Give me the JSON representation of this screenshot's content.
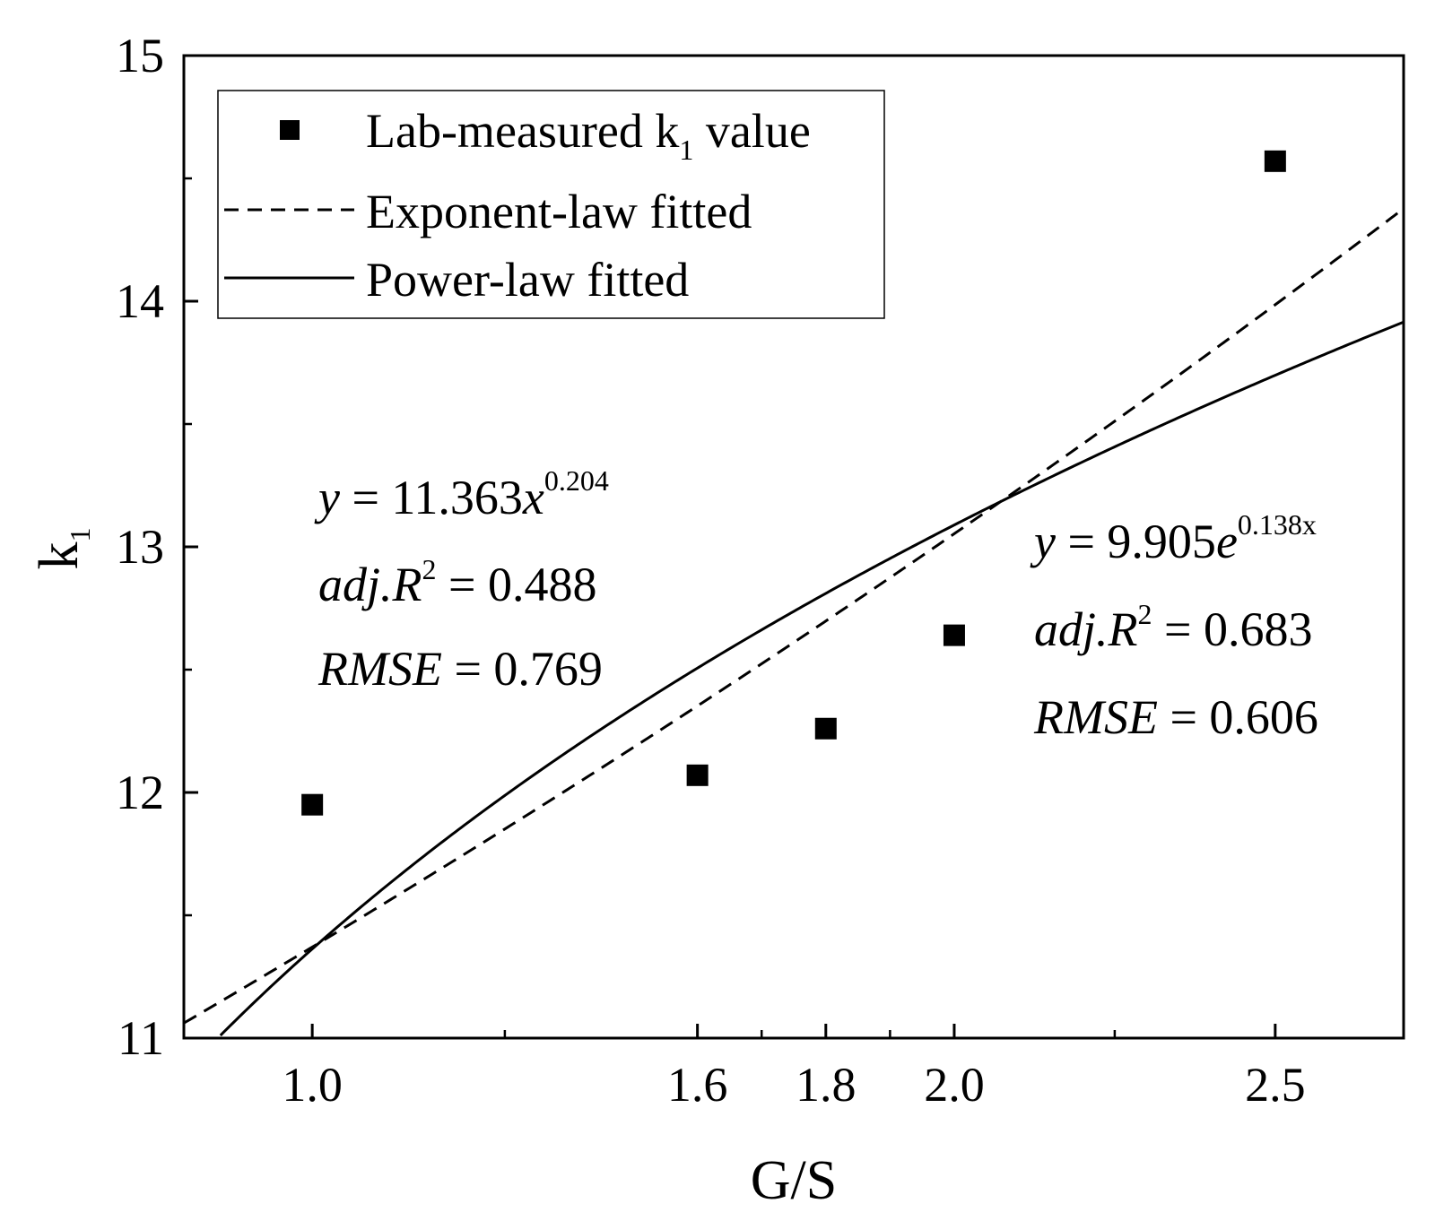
{
  "chart_data": {
    "type": "scatter",
    "xlabel": "G/S",
    "ylabel": "k",
    "ylabel_sub": "1",
    "xlim": [
      0.8,
      2.7
    ],
    "ylim": [
      11,
      15
    ],
    "x_ticks": [
      {
        "value": 1.0,
        "label": "1.0"
      },
      {
        "value": 1.6,
        "label": "1.6"
      },
      {
        "value": 1.8,
        "label": "1.8"
      },
      {
        "value": 2.0,
        "label": "2.0"
      },
      {
        "value": 2.5,
        "label": "2.5"
      }
    ],
    "x_minor_ticks": [
      1.3,
      1.7,
      1.9,
      2.25
    ],
    "y_ticks": [
      {
        "value": 11,
        "label": "11"
      },
      {
        "value": 12,
        "label": "12"
      },
      {
        "value": 13,
        "label": "13"
      },
      {
        "value": 14,
        "label": "14"
      },
      {
        "value": 15,
        "label": "15"
      }
    ],
    "y_minor_ticks": [
      11.5,
      12.5,
      13.5,
      14.5
    ],
    "series": [
      {
        "name": "Lab-measured k1 value",
        "kind": "points",
        "x": [
          1.0,
          1.6,
          1.8,
          2.0,
          2.5
        ],
        "y": [
          11.95,
          12.07,
          12.26,
          12.64,
          14.57
        ]
      },
      {
        "name": "Exponent-law fitted",
        "kind": "dashed-line",
        "model": "exponential",
        "a": 9.905,
        "b": 0.138
      },
      {
        "name": "Power-law fitted",
        "kind": "solid-line",
        "model": "power",
        "a": 11.363,
        "b": 0.204
      }
    ],
    "legend": {
      "position": "top-left",
      "items": [
        {
          "label_main": "Lab-measured k",
          "label_sub": "1",
          "label_tail": " value"
        },
        {
          "label_main": "Exponent-law fitted"
        },
        {
          "label_main": "Power-law fitted"
        }
      ]
    },
    "annotations": {
      "power": {
        "eq_lhs": "y",
        "eq_mid": " = 11.363",
        "eq_var": "x",
        "eq_sup": "0.204",
        "r2_lhs": "adj.R",
        "r2_sup": "2",
        "r2_rhs": " = 0.488",
        "rmse_lhs": "RMSE",
        "rmse_rhs": " = 0.769"
      },
      "exponent": {
        "eq_lhs": "y",
        "eq_mid": " = 9.905",
        "eq_var": "e",
        "eq_sup": "0.138x",
        "r2_lhs": "adj.R",
        "r2_sup": "2",
        "r2_rhs": " = 0.683",
        "rmse_lhs": "RMSE",
        "rmse_rhs": " = 0.606"
      }
    }
  }
}
